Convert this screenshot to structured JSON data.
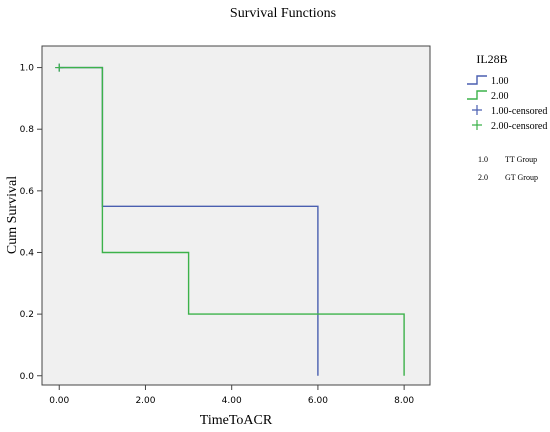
{
  "chart_data": {
    "type": "line",
    "title": "Survival Functions",
    "xlabel": "TimeToACR",
    "ylabel": "Cum Survival",
    "xlim": [
      -0.4,
      8.6
    ],
    "ylim": [
      -0.03,
      1.07
    ],
    "xticks": [
      0,
      2,
      4,
      6,
      8
    ],
    "xtick_labels": [
      "0.00",
      "2.00",
      "4.00",
      "6.00",
      "8.00"
    ],
    "yticks": [
      0,
      0.2,
      0.4,
      0.6,
      0.8,
      1.0
    ],
    "ytick_labels": [
      "0.0",
      "0.2",
      "0.4",
      "0.6",
      "0.8",
      "1.0"
    ],
    "grid": false,
    "legend_position": "right",
    "legend_title": "IL28B",
    "series": [
      {
        "name": "1.00",
        "color": "#4a5fb0",
        "step": true,
        "x": [
          0,
          1,
          1,
          6,
          6
        ],
        "y": [
          1.0,
          1.0,
          0.55,
          0.55,
          0.0
        ]
      },
      {
        "name": "2.00",
        "color": "#3cb24a",
        "step": true,
        "x": [
          0,
          1,
          1,
          3,
          3,
          8,
          8
        ],
        "y": [
          1.0,
          1.0,
          0.4,
          0.4,
          0.2,
          0.2,
          0.0
        ]
      }
    ],
    "censored": [
      {
        "name": "1.00-censored",
        "color": "#4a5fb0",
        "x": [
          0
        ],
        "y": [
          1.0
        ]
      },
      {
        "name": "2.00-censored",
        "color": "#3cb24a",
        "x": [
          0
        ],
        "y": [
          1.0
        ]
      }
    ],
    "group_notes": [
      {
        "code": "1.0",
        "label": "TT Group"
      },
      {
        "code": "2.0",
        "label": "GT Group"
      }
    ]
  }
}
